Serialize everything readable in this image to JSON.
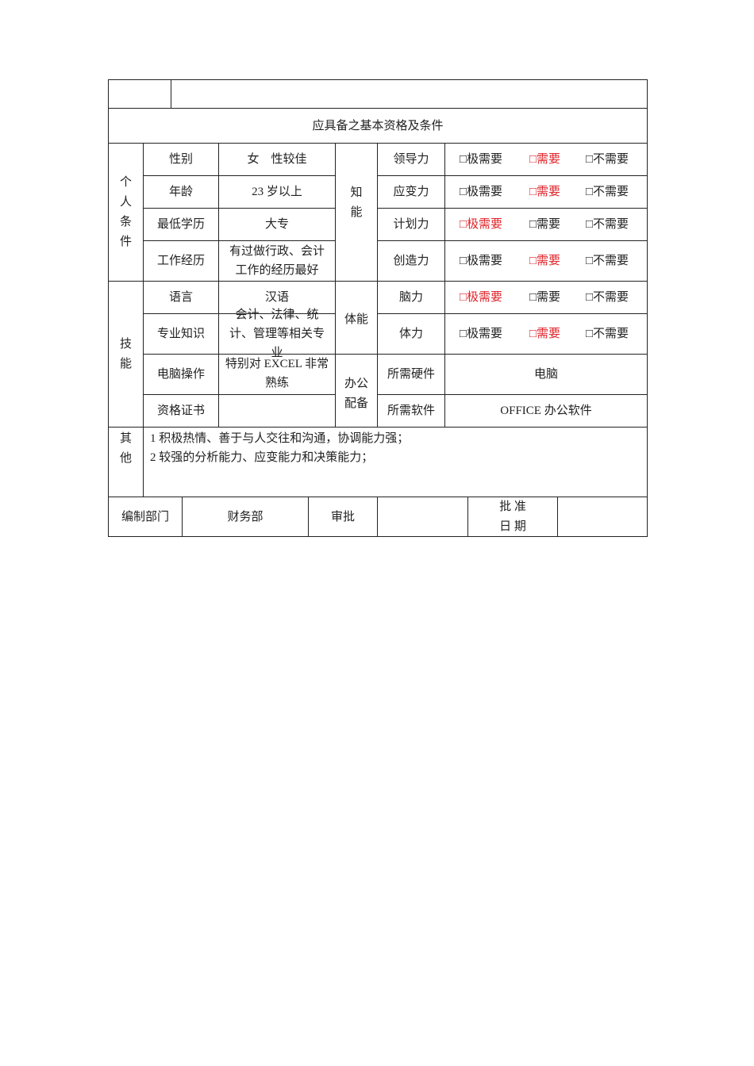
{
  "header": {
    "title": "应具备之基本资格及条件"
  },
  "personal": {
    "group_label": [
      "个",
      "人",
      "条",
      "件"
    ],
    "rows": [
      {
        "label": "性别",
        "value": "女　性较佳"
      },
      {
        "label": "年龄",
        "value": "23 岁以上"
      },
      {
        "label": "最低学历",
        "value": "大专"
      },
      {
        "label": "工作经历",
        "value": "有过做行政、会计工作的经历最好"
      }
    ]
  },
  "skills": {
    "group_label": [
      "技",
      "能"
    ],
    "rows": [
      {
        "label": "语言",
        "value": "汉语"
      },
      {
        "label": "专业知识",
        "value": "会计、法律、统计、管理等相关专业"
      },
      {
        "label": "电脑操作",
        "value": "特别对 EXCEL 非常熟练"
      },
      {
        "label": "资格证书",
        "value": ""
      }
    ]
  },
  "option_labels": [
    "□极需要",
    "□需要",
    "□不需要"
  ],
  "knowledge": {
    "group_label": [
      "知",
      "能"
    ],
    "rows": [
      {
        "label": "领导力",
        "selected_index": 1
      },
      {
        "label": "应变力",
        "selected_index": 1
      },
      {
        "label": "计划力",
        "selected_index": 0
      },
      {
        "label": "创造力",
        "selected_index": 1
      }
    ]
  },
  "physical": {
    "group_label": "体能",
    "rows": [
      {
        "label": "脑力",
        "selected_index": 0
      },
      {
        "label": "体力",
        "selected_index": 1
      }
    ]
  },
  "office": {
    "group_label": [
      "办公",
      "配备"
    ],
    "rows": [
      {
        "label": "所需硬件",
        "value": "电脑"
      },
      {
        "label": "所需软件",
        "value": "OFFICE 办公软件"
      }
    ]
  },
  "other": {
    "group_label": [
      "其",
      "他"
    ],
    "lines": [
      "1  积极热情、善于与人交往和沟通，协调能力强；",
      "2 较强的分析能力、应变能力和决策能力；"
    ]
  },
  "footer": {
    "dept_label": "编制部门",
    "dept_value": "财务部",
    "approve_label": "审批",
    "approve_value": "",
    "date_label": [
      "批 准",
      "日 期"
    ],
    "date_value": "",
    "highlight_color": "#e0242b"
  }
}
